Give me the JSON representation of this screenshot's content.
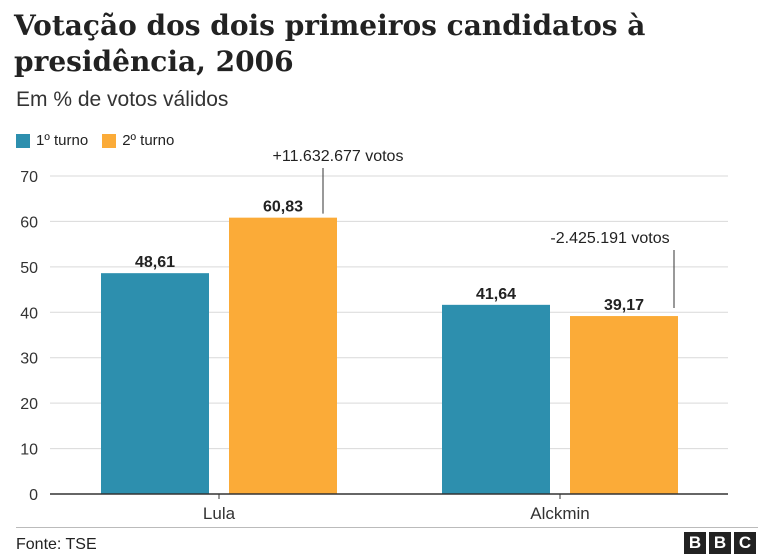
{
  "title": "Votação dos dois primeiros candidatos à presidência, 2006",
  "subtitle": "Em % de votos válidos",
  "colors": {
    "turno1": "#2d8fae",
    "turno2": "#fbab38",
    "grid": "#d9d9d9",
    "axis": "#333333"
  },
  "chart_data": {
    "type": "bar",
    "categories": [
      "Lula",
      "Alckmin"
    ],
    "series": [
      {
        "name": "1º turno",
        "values": [
          48.61,
          41.64
        ]
      },
      {
        "name": "2º turno",
        "values": [
          60.83,
          39.17
        ]
      }
    ],
    "data_labels": [
      [
        "48,61",
        "41,64"
      ],
      [
        "60,83",
        "39,17"
      ]
    ],
    "annotations": [
      "+11.632.677 votos",
      "-2.425.191 votos"
    ],
    "y_ticks": [
      0,
      10,
      20,
      30,
      40,
      50,
      60,
      70
    ],
    "ylim": [
      0,
      70
    ],
    "grid": true,
    "legend": "top-left"
  },
  "source": "Fonte: TSE",
  "logo": [
    "B",
    "B",
    "C"
  ]
}
